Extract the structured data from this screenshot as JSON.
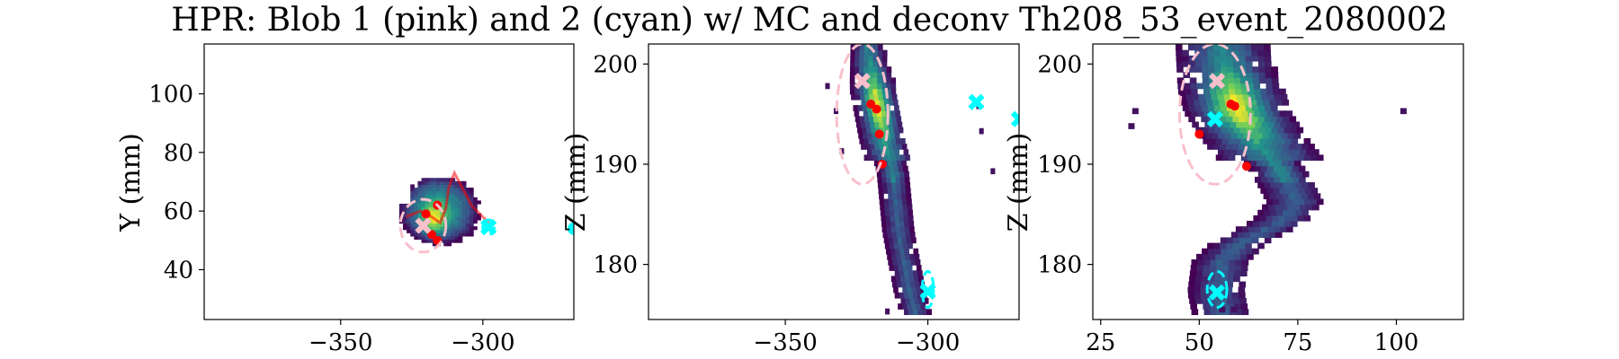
{
  "figure": {
    "title": "HPR: Blob 1 (pink) and 2 (cyan) w/ MC and deconv Th208_53_event_2080002",
    "colors": {
      "blob1": "#f9c0cb",
      "blob2": "#00ffff",
      "mc": "#ff0000",
      "low": "#440154",
      "mid": "#21918c",
      "high": "#fde725"
    }
  },
  "chart_data": [
    {
      "type": "heatmap",
      "panel": "XY",
      "title": "",
      "xlabel": "",
      "ylabel": "Y (mm)",
      "xlim": [
        -398,
        -268
      ],
      "ylim": [
        23,
        117
      ],
      "xticks": [
        -350,
        -300
      ],
      "xtick_labels": [
        "−350",
        "−300"
      ],
      "yticks": [
        40,
        60,
        80,
        100
      ],
      "ytick_labels": [
        "40",
        "60",
        "80",
        "100"
      ],
      "grid": false,
      "blob1_marker": [
        -321,
        55
      ],
      "blob1_ellipse": {
        "cx": -321,
        "cy": 55,
        "rx": 8,
        "ry": 9
      },
      "blob2_marker": [
        -298,
        54.5
      ],
      "blob2_ellipse": {
        "cx": -298,
        "cy": 54.5,
        "rx": 2,
        "ry": 2.5
      },
      "mc_points": [
        [
          -320,
          59
        ],
        [
          -316,
          62
        ],
        [
          -318,
          52
        ],
        [
          -316,
          50
        ]
      ],
      "mc_track": [
        [
          -327,
          58
        ],
        [
          -322,
          60
        ],
        [
          -318,
          58
        ],
        [
          -315,
          56
        ],
        [
          -313,
          61
        ],
        [
          -312,
          68
        ],
        [
          -310,
          73
        ],
        [
          -304,
          62
        ],
        [
          -297,
          55
        ]
      ],
      "extra_points_right": [
        [
          -268,
          54
        ]
      ]
    },
    {
      "type": "heatmap",
      "panel": "XZ",
      "title": "",
      "xlabel": "",
      "ylabel": "Z (mm)",
      "xlim": [
        -398,
        -268
      ],
      "ylim": [
        174.5,
        202
      ],
      "xticks": [
        -350,
        -300
      ],
      "xtick_labels": [
        "−350",
        "−300"
      ],
      "yticks": [
        180,
        190,
        200
      ],
      "ytick_labels": [
        "180",
        "190",
        "200"
      ],
      "grid": false,
      "blob1_marker": [
        -323,
        198.3
      ],
      "blob1_ellipse": {
        "cx": -323,
        "cy": 195,
        "rx": 9,
        "ry": 7
      },
      "blob2_marker": [
        -300,
        177.3
      ],
      "blob2_ellipse": {
        "cx": -300,
        "cy": 177.5,
        "rx": 2,
        "ry": 1.8
      },
      "extra_cyan_markers": [
        [
          -283,
          196.2
        ],
        [
          -268,
          194.5
        ]
      ],
      "mc_points": [
        [
          -320,
          196
        ],
        [
          -318,
          195.5
        ],
        [
          -317,
          193
        ],
        [
          -316,
          190
        ]
      ],
      "track_centerline": [
        [
          -322,
          201.8
        ],
        [
          -320,
          198
        ],
        [
          -318,
          195
        ],
        [
          -316,
          192
        ],
        [
          -313,
          189
        ],
        [
          -312,
          186
        ],
        [
          -311,
          183
        ],
        [
          -309,
          180
        ],
        [
          -307,
          177
        ],
        [
          -305,
          175
        ]
      ]
    },
    {
      "type": "heatmap",
      "panel": "YZ",
      "title": "",
      "xlabel": "",
      "ylabel": "Z (mm)",
      "xlim": [
        23,
        117
      ],
      "ylim": [
        174.5,
        202
      ],
      "xticks": [
        25,
        50,
        75,
        100
      ],
      "xtick_labels": [
        "25",
        "50",
        "75",
        "100"
      ],
      "yticks": [
        180,
        190,
        200
      ],
      "ytick_labels": [
        "180",
        "190",
        "200"
      ],
      "grid": false,
      "blob1_marker": [
        54.5,
        198.3
      ],
      "blob1_ellipse": {
        "cx": 54,
        "cy": 195,
        "rx": 9,
        "ry": 7
      },
      "blob2_marker": [
        54,
        194.5
      ],
      "blob2_ellipse": {
        "cx": 54.5,
        "cy": 177.5,
        "rx": 2.5,
        "ry": 1.8
      },
      "extra_cyan_markers": [
        [
          54.5,
          177.2
        ]
      ],
      "mc_points": [
        [
          58,
          196
        ],
        [
          59,
          195.8
        ],
        [
          50,
          193
        ],
        [
          62,
          189.8
        ]
      ],
      "track_centerline": [
        [
          55,
          201.8
        ],
        [
          57,
          198
        ],
        [
          59,
          195
        ],
        [
          64,
          192
        ],
        [
          70,
          189
        ],
        [
          74,
          186
        ],
        [
          70,
          184
        ],
        [
          60,
          182
        ],
        [
          55,
          180
        ],
        [
          54,
          177
        ],
        [
          55,
          175
        ]
      ]
    }
  ]
}
